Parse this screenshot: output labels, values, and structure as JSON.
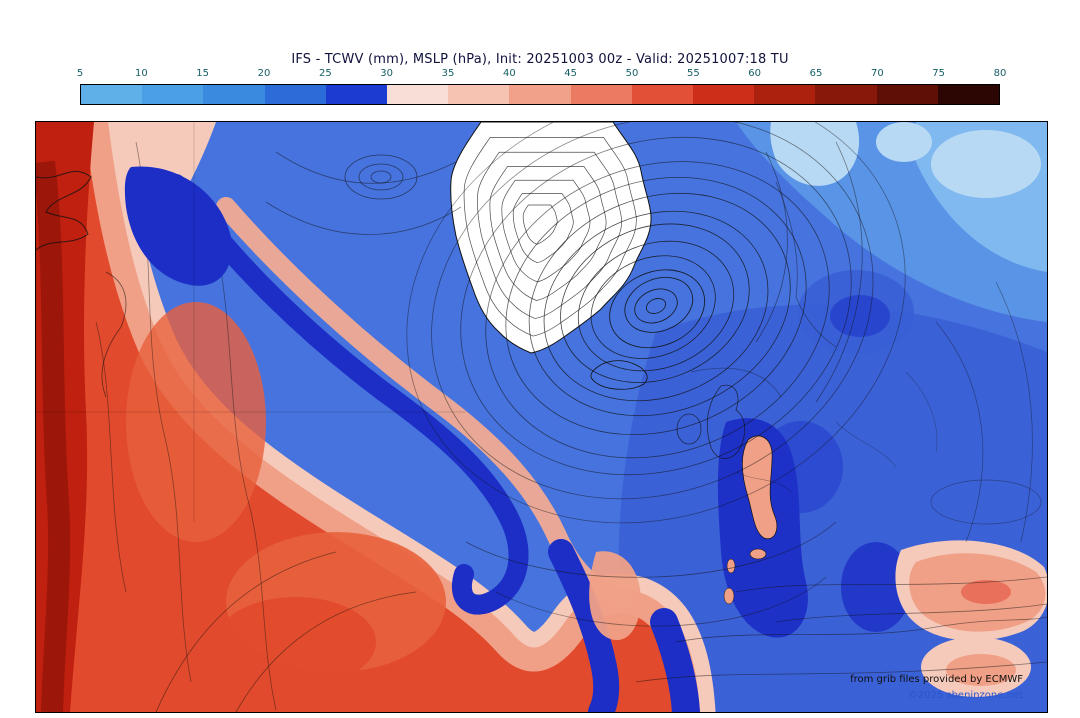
{
  "title": "IFS - TCWV (mm), MSLP (hPa), Init: 20251003 00z - Valid: 20251007:18 TU",
  "colorbar": {
    "ticks": [
      "5",
      "10",
      "15",
      "20",
      "25",
      "30",
      "35",
      "40",
      "45",
      "50",
      "55",
      "60",
      "65",
      "70",
      "75",
      "80"
    ],
    "segments": [
      "#5fb0e8",
      "#4b9fe4",
      "#3a8be0",
      "#2c6cd9",
      "#1c3bd0",
      "#f9ded7",
      "#f6c3b2",
      "#f1a18a",
      "#eb7a62",
      "#e25038",
      "#cc2e19",
      "#ac200e",
      "#881809",
      "#5f0f05",
      "#2c0603"
    ]
  },
  "map": {
    "credits": {
      "provider": "from grib files provided by ECMWF",
      "copyright": "©2025 sbeninzone.net"
    },
    "palette": {
      "base": "#4673de",
      "mid": "#3a5fd6",
      "deep_blue": "#2742cd",
      "navy": "#1c2ec6",
      "light_blue": "#5f9ce8",
      "lighter_blue": "#7fb9ef",
      "pale_blue": "#b8d9f4",
      "pink": "#f6cabb",
      "salmon": "#f0a087",
      "red": "#e14a2c",
      "orange": "#e8603c",
      "dark_red": "#bf200f",
      "deep_red": "#931407",
      "tick": "#176066",
      "credit": "#2a55cc"
    }
  },
  "chart_data": {
    "type": "heatmap",
    "title": "IFS - TCWV (mm), MSLP (hPa), Init: 20251003 00z - Valid: 20251007:18 TU",
    "model": "IFS",
    "shaded_variable": "TCWV (mm)",
    "contour_variable": "MSLP (hPa)",
    "init": "20251003 00z",
    "valid": "20251007:18 TU",
    "scale_ticks": [
      5,
      10,
      15,
      20,
      25,
      30,
      35,
      40,
      45,
      50,
      55,
      60,
      65,
      70,
      75,
      80
    ],
    "scale_colors": [
      "#5fb0e8",
      "#4b9fe4",
      "#3a8be0",
      "#2c6cd9",
      "#1c3bd0",
      "#f9ded7",
      "#f6c3b2",
      "#f1a18a",
      "#eb7a62",
      "#e25038",
      "#cc2e19",
      "#ac200e",
      "#881809",
      "#5f0f05",
      "#2c0603"
    ],
    "legend_position": "top"
  }
}
